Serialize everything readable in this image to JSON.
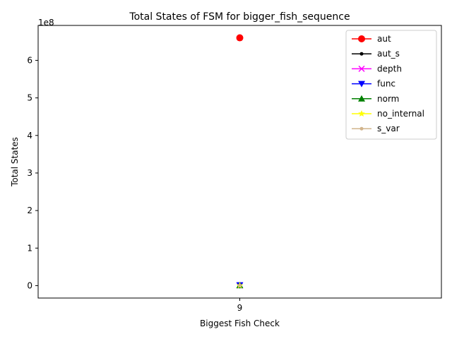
{
  "chart_data": {
    "type": "line",
    "title": "Total States of FSM for bigger_fish_sequence",
    "xlabel": "Biggest Fish Check",
    "ylabel": "Total States",
    "y_offset_label": "1e8",
    "x": [
      9
    ],
    "x_tick_labels": [
      "9"
    ],
    "ylim": [
      -33000000,
      693000000
    ],
    "yticks": [
      0,
      100000000,
      200000000,
      300000000,
      400000000,
      500000000,
      600000000
    ],
    "ytick_labels": [
      "0",
      "1",
      "2",
      "3",
      "4",
      "5",
      "6"
    ],
    "grid": false,
    "legend_position": "top-right",
    "series": [
      {
        "name": "aut",
        "values": [
          660000000
        ],
        "color": "#ff0000",
        "marker": "circle"
      },
      {
        "name": "aut_s",
        "values": [
          500000
        ],
        "color": "#000000",
        "marker": "point"
      },
      {
        "name": "depth",
        "values": [
          400000
        ],
        "color": "#ff00ff",
        "marker": "x"
      },
      {
        "name": "func",
        "values": [
          1500000
        ],
        "color": "#0000ff",
        "marker": "triangle-down"
      },
      {
        "name": "norm",
        "values": [
          600000
        ],
        "color": "#008000",
        "marker": "triangle-up"
      },
      {
        "name": "no_internal",
        "values": [
          300000
        ],
        "color": "#ffff00",
        "marker": "star"
      },
      {
        "name": "s_var",
        "values": [
          200000
        ],
        "color": "#d2b48c",
        "marker": "point"
      }
    ]
  }
}
